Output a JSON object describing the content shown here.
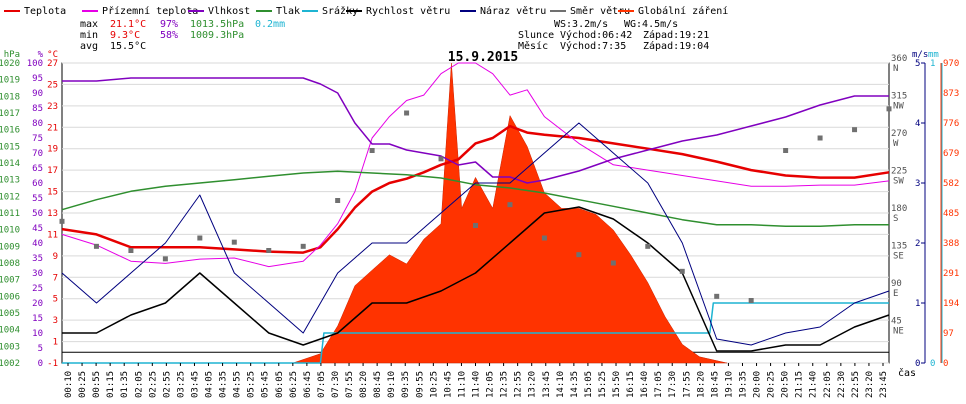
{
  "chart_data": {
    "type": "line",
    "title": "15.9.2015",
    "xlabel": "čas",
    "legend": [
      {
        "name": "Teplota",
        "color": "#e60000"
      },
      {
        "name": "Přízemní teplota",
        "color": "#e600e6"
      },
      {
        "name": "Vlhkost",
        "color": "#8000bf"
      },
      {
        "name": "Tlak",
        "color": "#2f8f2f"
      },
      {
        "name": "Srážky",
        "color": "#1eb4d2"
      },
      {
        "name": "Rychlost větru",
        "color": "#000000"
      },
      {
        "name": "Náraz větru",
        "color": "#00007f"
      },
      {
        "name": "Směr větru",
        "color": "#707070"
      },
      {
        "name": "Globální záření",
        "color": "#ff3300"
      }
    ],
    "stats": {
      "max_label": "max",
      "min_label": "min",
      "avg_label": "avg",
      "temp_max": "21.1°C",
      "hum_max": "97%",
      "press_max": "1013.5hPa",
      "rain": "0.2mm",
      "temp_min": "9.3°C",
      "hum_min": "58%",
      "press_min": "1009.3hPa",
      "temp_avg": "15.5°C"
    },
    "astro": {
      "ws": "WS:3.2m/s",
      "wg": "WG:4.5m/s",
      "sun_label": "Slunce",
      "sunrise": "Východ:06:42",
      "sunset": "Západ:19:21",
      "moon_label": "Měsíc",
      "moonrise": "Východ:7:35",
      "moonset": "Západ:19:04"
    },
    "left_axes": {
      "pressure": {
        "unit": "hPa",
        "ticks": [
          "1020",
          "1019",
          "1018",
          "1017",
          "1016",
          "1015",
          "1014",
          "1013",
          "1012",
          "1011",
          "1010",
          "1009",
          "1008",
          "1007",
          "1006",
          "1005",
          "1004",
          "1003",
          "1002"
        ],
        "range": [
          1002,
          1020
        ]
      },
      "humidity": {
        "unit": "%",
        "ticks": [
          "100",
          "95",
          "90",
          "85",
          "80",
          "75",
          "70",
          "65",
          "60",
          "55",
          "50",
          "45",
          "40",
          "35",
          "30",
          "25",
          "20",
          "15",
          "10",
          "5",
          "0"
        ],
        "range": [
          0,
          100
        ]
      },
      "temperature": {
        "unit": "°C",
        "ticks": [
          "27",
          "25",
          "23",
          "21",
          "19",
          "17",
          "15",
          "13",
          "11",
          "9",
          "7",
          "5",
          "3",
          "1",
          "-1"
        ],
        "range": [
          -1,
          27
        ]
      }
    },
    "right_axes": {
      "wind_dir": {
        "ticks": [
          "360 N",
          "315 NW",
          "270 W",
          "225 SW",
          "180 S",
          "135 SE",
          "90 E",
          "45 NE"
        ],
        "range": [
          0,
          360
        ]
      },
      "wind_speed": {
        "unit": "m/s",
        "ticks": [
          "5",
          "4",
          "3",
          "2",
          "1",
          "0"
        ],
        "range": [
          0,
          5
        ]
      },
      "rain": {
        "unit": "mm",
        "ticks": [
          "1",
          "0"
        ],
        "range": [
          0,
          1
        ]
      },
      "radiation": {
        "unit": "W/m²",
        "ticks": [
          "970",
          "873",
          "776",
          "679",
          "582",
          "485",
          "388",
          "291",
          "194",
          "97",
          "0"
        ],
        "range": [
          0,
          970
        ]
      }
    },
    "x_ticks": [
      "00:10",
      "00:25",
      "00:55",
      "01:15",
      "01:35",
      "02:05",
      "02:25",
      "02:55",
      "03:25",
      "03:45",
      "04:05",
      "04:35",
      "04:55",
      "05:25",
      "05:45",
      "06:05",
      "06:25",
      "06:45",
      "07:05",
      "07:30",
      "07:55",
      "08:20",
      "08:45",
      "09:10",
      "09:35",
      "09:55",
      "10:25",
      "10:45",
      "11:10",
      "11:40",
      "12:05",
      "12:35",
      "12:55",
      "13:20",
      "13:45",
      "14:10",
      "14:35",
      "15:05",
      "15:25",
      "15:50",
      "16:15",
      "16:40",
      "17:05",
      "17:30",
      "17:55",
      "18:20",
      "18:45",
      "19:10",
      "19:35",
      "20:00",
      "20:25",
      "20:50",
      "21:15",
      "21:40",
      "22:05",
      "22:30",
      "22:55",
      "23:20",
      "23:45"
    ],
    "x_range_hours": [
      0,
      24
    ],
    "series": [
      {
        "name": "Teplota",
        "unit": "°C",
        "x": [
          0,
          1,
          2,
          3,
          4,
          5,
          6,
          7,
          7.5,
          8,
          8.5,
          9,
          9.5,
          10,
          10.5,
          11,
          11.5,
          12,
          12.5,
          13,
          13.5,
          14,
          15,
          16,
          17,
          18,
          19,
          20,
          21,
          22,
          23,
          24
        ],
        "y": [
          11.5,
          11,
          9.8,
          9.8,
          9.8,
          9.6,
          9.4,
          9.3,
          9.8,
          11.5,
          13.5,
          15,
          15.8,
          16.2,
          16.8,
          17.5,
          18,
          19.5,
          20,
          21.1,
          20.5,
          20.3,
          20,
          19.5,
          19,
          18.5,
          17.8,
          17,
          16.5,
          16.3,
          16.3,
          16.8
        ]
      },
      {
        "name": "Přízemní teplota",
        "unit": "°C",
        "x": [
          0,
          1,
          2,
          3,
          4,
          5,
          6,
          7,
          7.5,
          8,
          8.5,
          9,
          9.5,
          10,
          10.5,
          11,
          11.5,
          12,
          12.5,
          13,
          13.5,
          14,
          15,
          16,
          17,
          18,
          19,
          20,
          21,
          22,
          23,
          24
        ],
        "y": [
          11,
          10,
          8.5,
          8.3,
          8.7,
          8.8,
          8,
          8.5,
          10,
          12,
          15,
          20,
          22,
          23.5,
          24,
          26,
          27,
          27,
          26,
          24,
          24.5,
          22,
          19.5,
          17.5,
          17,
          16.5,
          16,
          15.5,
          15.5,
          15.6,
          15.6,
          16
        ]
      },
      {
        "name": "Vlhkost",
        "unit": "%",
        "x": [
          0,
          1,
          2,
          3,
          4,
          5,
          6,
          7,
          7.5,
          8,
          8.5,
          9,
          9.5,
          10,
          10.5,
          11,
          11.5,
          12,
          12.5,
          13,
          13.5,
          14,
          15,
          16,
          17,
          18,
          19,
          20,
          21,
          22,
          23,
          24
        ],
        "y": [
          94,
          94,
          95,
          95,
          95,
          95,
          95,
          95,
          93,
          90,
          80,
          73,
          73,
          71,
          70,
          69,
          66,
          67,
          62,
          62,
          60,
          61,
          64,
          68,
          71,
          74,
          76,
          79,
          82,
          86,
          89,
          89
        ]
      },
      {
        "name": "Tlak",
        "unit": "hPa",
        "x": [
          0,
          1,
          2,
          3,
          4,
          5,
          6,
          7,
          8,
          9,
          10,
          11,
          12,
          13,
          14,
          15,
          16,
          17,
          18,
          19,
          20,
          21,
          22,
          23,
          24
        ],
        "y": [
          1011.2,
          1011.8,
          1012.3,
          1012.6,
          1012.8,
          1013.0,
          1013.2,
          1013.4,
          1013.5,
          1013.4,
          1013.3,
          1013.1,
          1012.7,
          1012.5,
          1012.2,
          1011.8,
          1011.4,
          1011.0,
          1010.6,
          1010.3,
          1010.3,
          1010.2,
          1010.2,
          1010.3,
          1010.3
        ]
      },
      {
        "name": "Srážky",
        "unit": "mm",
        "x": [
          0,
          7.5,
          7.6,
          18.8,
          18.9,
          24
        ],
        "y": [
          0,
          0,
          0.1,
          0.1,
          0.2,
          0.2
        ]
      },
      {
        "name": "Globální záření",
        "unit": "W/m²",
        "x": [
          6.7,
          7.5,
          8,
          8.5,
          9,
          9.5,
          10,
          10.5,
          11,
          11.3,
          11.6,
          12,
          12.5,
          13,
          13.5,
          14,
          14.5,
          15,
          15.5,
          16,
          16.5,
          17,
          17.5,
          18,
          18.5,
          19.3
        ],
        "y": [
          0,
          30,
          120,
          250,
          300,
          350,
          320,
          400,
          450,
          970,
          500,
          600,
          500,
          800,
          700,
          550,
          500,
          500,
          480,
          430,
          350,
          260,
          150,
          60,
          20,
          0
        ]
      },
      {
        "name": "Rychlost větru",
        "unit": "m/s",
        "x": [
          0,
          1,
          2,
          3,
          4,
          5,
          6,
          7,
          8,
          9,
          10,
          11,
          12,
          13,
          14,
          15,
          16,
          17,
          18,
          19,
          20,
          21,
          22,
          23,
          24
        ],
        "y": [
          0.5,
          0.5,
          0.8,
          1,
          1.5,
          1,
          0.5,
          0.3,
          0.5,
          1,
          1,
          1.2,
          1.5,
          2,
          2.5,
          2.6,
          2.4,
          2,
          1.5,
          0.2,
          0.2,
          0.3,
          0.3,
          0.6,
          0.8
        ]
      },
      {
        "name": "Náraz větru",
        "unit": "m/s",
        "x": [
          0,
          1,
          2,
          3,
          4,
          5,
          6,
          7,
          8,
          9,
          10,
          11,
          12,
          13,
          14,
          15,
          16,
          17,
          18,
          19,
          20,
          21,
          22,
          23,
          24
        ],
        "y": [
          1.5,
          1,
          1.5,
          2,
          2.8,
          1.5,
          1,
          0.5,
          1.5,
          2,
          2,
          2.5,
          3,
          3,
          3.5,
          4,
          3.5,
          3,
          2,
          0.4,
          0.3,
          0.5,
          0.6,
          1,
          1.2
        ]
      },
      {
        "name": "Směr větru",
        "unit": "°",
        "x": [
          0,
          1,
          2,
          3,
          4,
          5,
          6,
          7,
          8,
          9,
          10,
          11,
          12,
          13,
          14,
          15,
          16,
          17,
          18,
          19,
          20,
          21,
          22,
          23,
          24
        ],
        "y": [
          170,
          140,
          135,
          125,
          150,
          145,
          135,
          140,
          195,
          255,
          300,
          245,
          165,
          190,
          150,
          130,
          120,
          140,
          110,
          80,
          75,
          255,
          270,
          280,
          305
        ]
      }
    ]
  }
}
